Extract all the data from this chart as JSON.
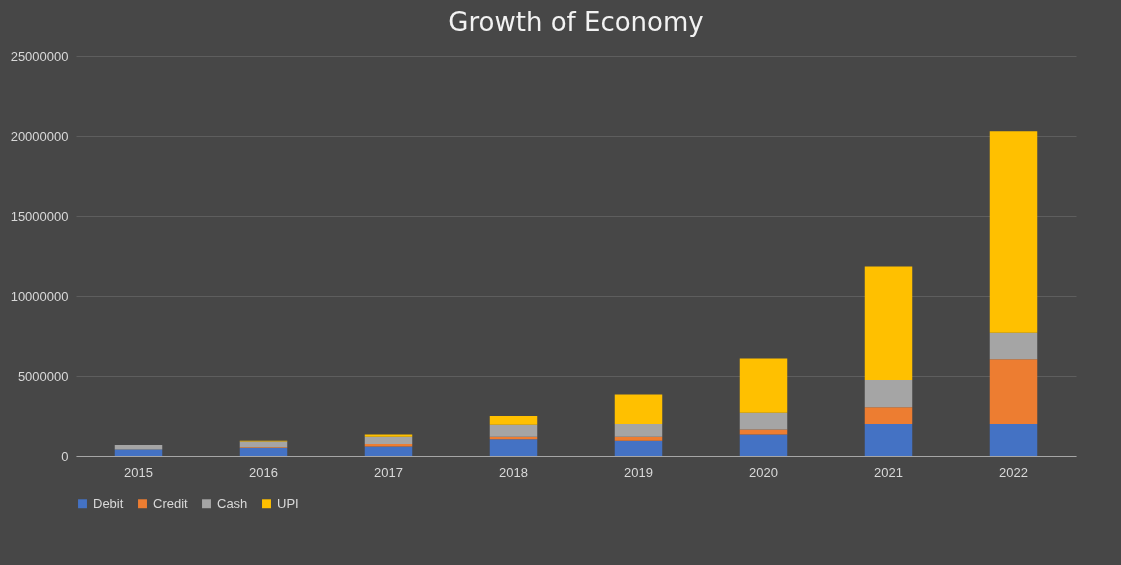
{
  "chart_data": {
    "type": "bar",
    "title": "Growth of Economy",
    "stacked": true,
    "grid": "y",
    "legend": "bottom",
    "categories": [
      "2015",
      "2016",
      "2017",
      "2018",
      "2019",
      "2020",
      "2021",
      "2022"
    ],
    "series": [
      {
        "name": "Debit",
        "color": "#4472c4",
        "values": [
          400000,
          500000,
          600000,
          1050000,
          950000,
          1350000,
          2000000,
          2000000
        ]
      },
      {
        "name": "Credit",
        "color": "#ed7d31",
        "values": [
          null,
          50000,
          150000,
          150000,
          250000,
          300000,
          1050000,
          4050000
        ]
      },
      {
        "name": "Cash",
        "color": "#a5a5a5",
        "values": [
          280000,
          350000,
          450000,
          750000,
          800000,
          1050000,
          1700000,
          1650000
        ]
      },
      {
        "name": "UPI",
        "color": "#ffc000",
        "values": [
          0,
          50000,
          150000,
          550000,
          1850000,
          3400000,
          7100000,
          12600000
        ]
      }
    ],
    "ylim": [
      0,
      25000000
    ],
    "yticks": [
      0,
      5000000,
      10000000,
      15000000,
      20000000,
      25000000
    ]
  }
}
